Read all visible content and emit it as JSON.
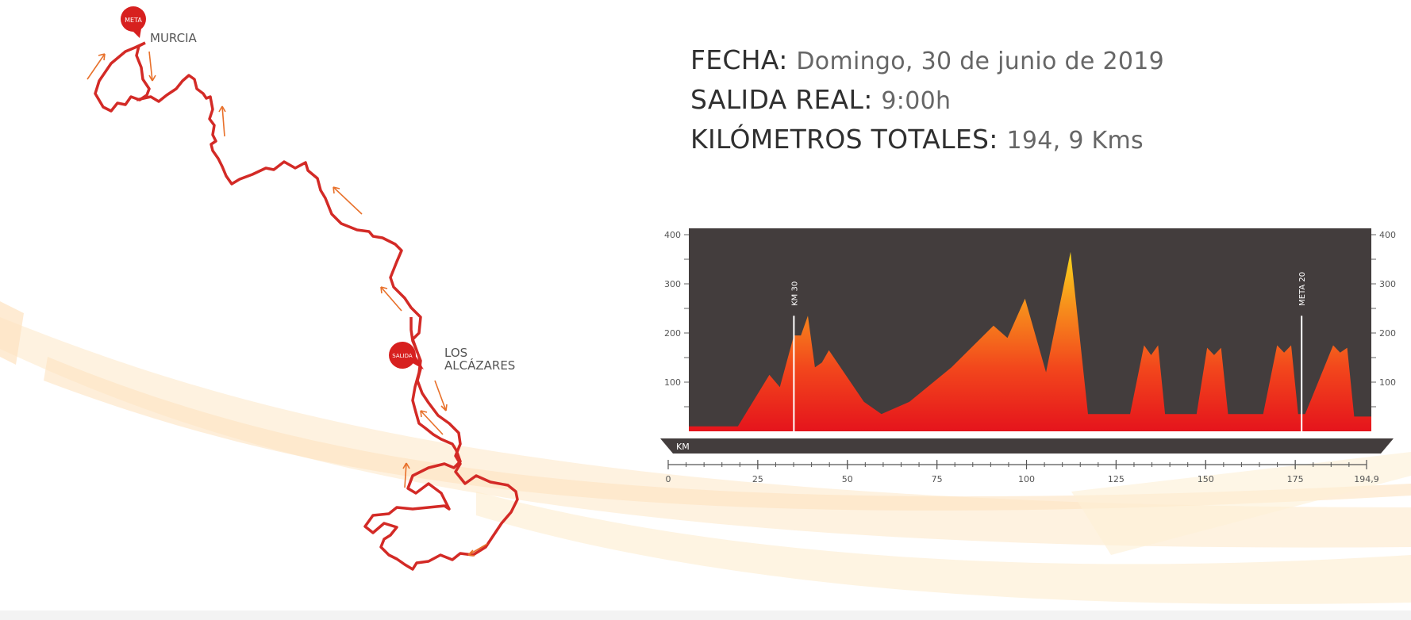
{
  "header": {
    "fecha_label": "FECHA",
    "fecha_value": "Domingo, 30 de junio de 2019",
    "salida_label": "SALIDA REAL",
    "salida_value": "9:00h",
    "km_label": "KILÓMETROS TOTALES",
    "km_value": "194, 9 Kms",
    "separator": ":"
  },
  "map": {
    "finish_badge": "META",
    "finish_city": "MURCIA",
    "start_badge": "SALIDA",
    "start_city_line1": "LOS",
    "start_city_line2": "ALCÁZARES",
    "route_color": "#d32a26",
    "arrow_color": "#e8702a"
  },
  "chart_data": {
    "type": "area",
    "title": "",
    "xlabel": "KM",
    "ylabel": "",
    "xlim": [
      0,
      194.9
    ],
    "ylim": [
      0,
      400
    ],
    "x_ticks": [
      0,
      25,
      50,
      75,
      100,
      125,
      150,
      175,
      194.9
    ],
    "x_tick_labels": [
      "0",
      "25",
      "50",
      "75",
      "100",
      "125",
      "150",
      "175",
      "194,9"
    ],
    "y_ticks": [
      100,
      200,
      300,
      400
    ],
    "y_tick_labels": [
      "100",
      "200",
      "300",
      "400"
    ],
    "grid": false,
    "series": [
      {
        "x": [
          0,
          14,
          23,
          26,
          30,
          32,
          34,
          36,
          38,
          40,
          50,
          55,
          63,
          75,
          87,
          91,
          96,
          102,
          109,
          114,
          118,
          126,
          130,
          132,
          134,
          136,
          145,
          148,
          150,
          152,
          154,
          164,
          168,
          170,
          172,
          174,
          176,
          184,
          186,
          188,
          190,
          194.9
        ],
        "y": [
          10,
          10,
          115,
          90,
          195,
          195,
          235,
          130,
          140,
          165,
          60,
          35,
          60,
          130,
          215,
          190,
          270,
          120,
          365,
          35,
          35,
          35,
          175,
          155,
          175,
          35,
          35,
          170,
          155,
          170,
          35,
          35,
          175,
          160,
          175,
          35,
          35,
          175,
          160,
          170,
          30,
          30
        ]
      }
    ],
    "annotations": [
      {
        "x": 30,
        "label": "KM 30"
      },
      {
        "x": 175,
        "label": "META 20"
      }
    ]
  }
}
